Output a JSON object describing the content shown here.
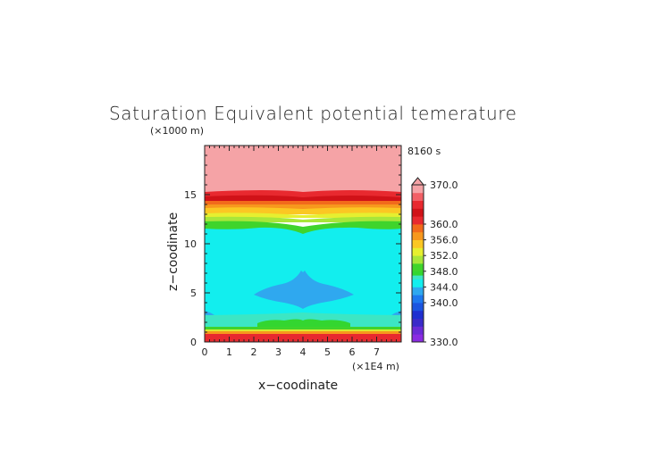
{
  "chart_data": {
    "type": "heatmap",
    "title": "Saturation Equivalent potential temerature",
    "time_label": "8160 s",
    "xlabel": "x−coodinate",
    "ylabel": "z−coodinate",
    "x_unit": "(×1E4 m)",
    "y_unit": "(×1000 m)",
    "xlim": [
      0,
      8
    ],
    "ylim": [
      0,
      20
    ],
    "x_ticks": [
      "0",
      "1",
      "2",
      "3",
      "4",
      "5",
      "6",
      "7"
    ],
    "y_ticks": [
      "0",
      "5",
      "10",
      "15"
    ],
    "colorbar": {
      "labels": [
        "370.0",
        "360.0",
        "356.0",
        "352.0",
        "348.0",
        "344.0",
        "340.0",
        "330.0"
      ],
      "min": 330,
      "max": 370,
      "top_arrow": true
    },
    "horizontal_bands": [
      {
        "z_from": 0.0,
        "z_to": 0.3,
        "value": 366
      },
      {
        "z_from": 0.3,
        "z_to": 0.7,
        "value": 360
      },
      {
        "z_from": 0.7,
        "z_to": 1.0,
        "value": 356
      },
      {
        "z_from": 1.0,
        "z_to": 1.3,
        "value": 352
      },
      {
        "z_from": 1.3,
        "z_to": 1.7,
        "value": 347
      },
      {
        "z_from": 1.7,
        "z_to": 11.2,
        "value": 345
      },
      {
        "z_from": 11.2,
        "z_to": 12.2,
        "value": 348
      },
      {
        "z_from": 12.2,
        "z_to": 12.8,
        "value": 350
      },
      {
        "z_from": 12.8,
        "z_to": 13.2,
        "value": 352
      },
      {
        "z_from": 13.2,
        "z_to": 13.6,
        "value": 354
      },
      {
        "z_from": 13.6,
        "z_to": 14.0,
        "value": 356
      },
      {
        "z_from": 14.0,
        "z_to": 14.5,
        "value": 360
      },
      {
        "z_from": 14.5,
        "z_to": 20.0,
        "value": 370
      }
    ]
  }
}
